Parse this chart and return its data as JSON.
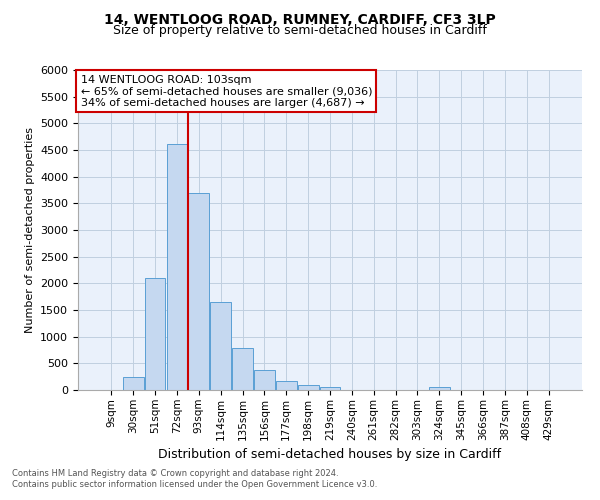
{
  "title": "14, WENTLOOG ROAD, RUMNEY, CARDIFF, CF3 3LP",
  "subtitle": "Size of property relative to semi-detached houses in Cardiff",
  "xlabel": "Distribution of semi-detached houses by size in Cardiff",
  "ylabel": "Number of semi-detached properties",
  "footnote1": "Contains HM Land Registry data © Crown copyright and database right 2024.",
  "footnote2": "Contains public sector information licensed under the Open Government Licence v3.0.",
  "bar_labels": [
    "9sqm",
    "30sqm",
    "51sqm",
    "72sqm",
    "93sqm",
    "114sqm",
    "135sqm",
    "156sqm",
    "177sqm",
    "198sqm",
    "219sqm",
    "240sqm",
    "261sqm",
    "282sqm",
    "303sqm",
    "324sqm",
    "345sqm",
    "366sqm",
    "387sqm",
    "408sqm",
    "429sqm"
  ],
  "bar_values": [
    0,
    240,
    2100,
    4620,
    3700,
    1650,
    790,
    370,
    175,
    100,
    65,
    0,
    0,
    0,
    0,
    55,
    0,
    0,
    0,
    0,
    0
  ],
  "bar_color": "#c5d8f0",
  "bar_edge_color": "#5a9fd4",
  "vline_x_idx": 4,
  "property_line_label": "14 WENTLOOG ROAD: 103sqm",
  "annotation_line1": "← 65% of semi-detached houses are smaller (9,036)",
  "annotation_line2": "34% of semi-detached houses are larger (4,687) →",
  "annotation_box_color": "#ffffff",
  "annotation_box_edge": "#cc0000",
  "vline_color": "#cc0000",
  "ylim": [
    0,
    6000
  ],
  "yticks": [
    0,
    500,
    1000,
    1500,
    2000,
    2500,
    3000,
    3500,
    4000,
    4500,
    5000,
    5500,
    6000
  ],
  "grid_color": "#c0cfe0",
  "bg_color": "#eaf1fb",
  "title_fontsize": 10,
  "subtitle_fontsize": 9,
  "footnote_fontsize": 6,
  "annotation_fontsize": 8,
  "ylabel_fontsize": 8,
  "xlabel_fontsize": 9
}
